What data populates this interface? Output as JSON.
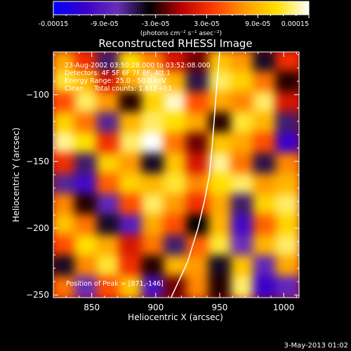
{
  "chart_data": {
    "type": "heatmap",
    "title": "Reconstructed RHESSI Image",
    "xlabel": "Heliocentric X (arcsec)",
    "ylabel": "Heliocentric Y (arcsec)",
    "xlim": [
      820,
      1012
    ],
    "ylim": [
      -252,
      -68
    ],
    "x_ticks": [
      850,
      900,
      950,
      1000
    ],
    "y_ticks": [
      -100,
      -150,
      -200,
      -250
    ],
    "colorbar": {
      "min": -0.00015,
      "max": 0.00015,
      "tick_labels": [
        "-0.00015",
        "-9.0e-05",
        "-3.0e-05",
        "3.0e-05",
        "9.0e-05",
        "0.00015"
      ],
      "unit_label": "(photons cm⁻² s⁻¹ asec⁻²)",
      "colors": [
        "#0000ff",
        "#3a00c8",
        "#6a2fb8",
        "#000000",
        "#b80000",
        "#ff3a00",
        "#ff9a00",
        "#ffe000",
        "#ffffff"
      ]
    },
    "annotations": {
      "time_range": "23-Aug-2002 03:50:28.000 to 03:52:08.000",
      "detectors": "Detectors: 4F 5F 6F 7F 8F, Att 1",
      "energy_range": "Energy Range: 25.0 - 50.0 keV",
      "clean_info": "Clean     Total counts: 1.61E+03",
      "peak": "Position of Peak = [871,-146]"
    },
    "limb_curve": [
      [
        912,
        -252
      ],
      [
        925,
        -225
      ],
      [
        933,
        -200
      ],
      [
        938,
        -180
      ],
      [
        942,
        -160
      ],
      [
        944,
        -140
      ],
      [
        946,
        -115
      ],
      [
        948,
        -90
      ],
      [
        950,
        -68
      ]
    ],
    "image_grid": {
      "rows": 12,
      "cols": 11,
      "values": [
        [
          0.55,
          0.2,
          -0.4,
          0.75,
          0.45,
          0.1,
          -0.1,
          0.65,
          0.5,
          -0.3,
          0.2
        ],
        [
          0.8,
          0.6,
          0.1,
          0.55,
          0.9,
          0.6,
          -0.35,
          0.85,
          0.7,
          0.4,
          -0.2
        ],
        [
          0.3,
          0.85,
          0.5,
          -0.2,
          0.7,
          0.95,
          0.3,
          0.55,
          0.45,
          0.85,
          0.1
        ],
        [
          0.7,
          0.4,
          -0.45,
          0.6,
          0.85,
          0.75,
          0.55,
          -0.2,
          0.8,
          0.6,
          -0.4
        ],
        [
          0.9,
          0.75,
          0.2,
          0.85,
          1.0,
          0.4,
          -0.1,
          0.65,
          0.55,
          0.3,
          -0.75
        ],
        [
          0.2,
          -0.4,
          0.7,
          0.5,
          -0.3,
          0.65,
          0.1,
          0.9,
          0.4,
          -0.35,
          0.45
        ],
        [
          -0.45,
          -0.7,
          0.35,
          0.7,
          0.6,
          0.8,
          0.45,
          0.75,
          0.85,
          0.5,
          0.6
        ],
        [
          0.45,
          -0.2,
          -0.55,
          0.3,
          0.85,
          0.5,
          0.2,
          0.55,
          -0.4,
          0.7,
          0.85
        ],
        [
          0.65,
          0.4,
          -0.3,
          -0.6,
          0.55,
          0.3,
          -0.25,
          0.6,
          -0.7,
          0.35,
          0.7
        ],
        [
          0.3,
          0.75,
          0.55,
          0.1,
          0.4,
          -0.4,
          0.35,
          0.8,
          -0.5,
          0.6,
          0.85
        ],
        [
          -0.3,
          0.45,
          0.8,
          0.2,
          -0.2,
          0.6,
          0.5,
          -0.3,
          0.65,
          -0.55,
          0.55
        ],
        [
          0.4,
          -0.5,
          0.3,
          0.65,
          -0.65,
          -0.1,
          0.45,
          -0.2,
          0.85,
          -0.75,
          -0.55
        ]
      ]
    }
  },
  "footer": {
    "date": "3-May-2013 01:02"
  }
}
